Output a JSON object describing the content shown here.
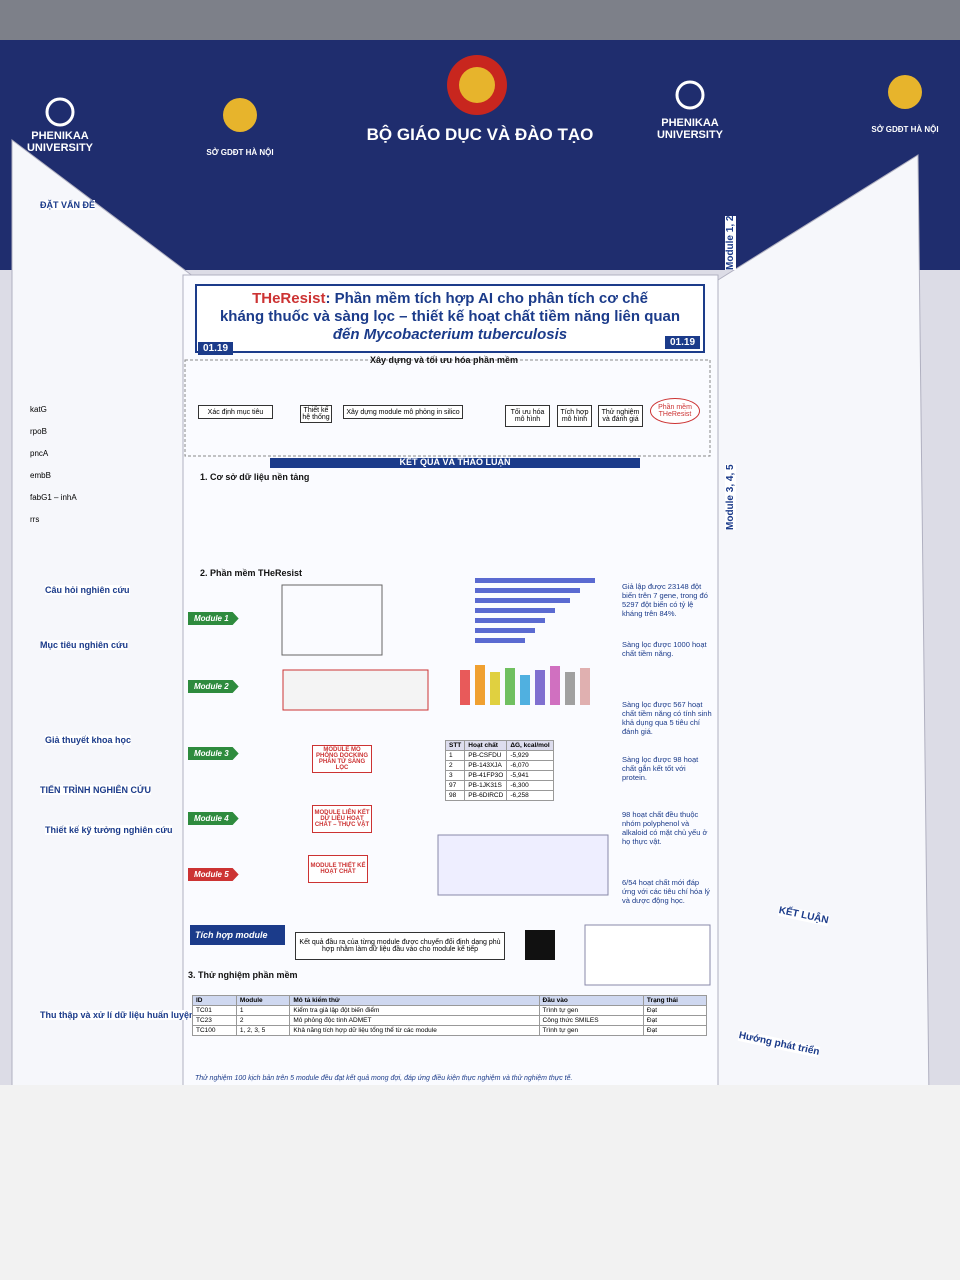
{
  "header": {
    "org_left": "PHENIKAA UNIVERSITY",
    "dept_left": "SỞ GDĐT HÀ NỘI",
    "ministry": "BỘ GIÁO DỤC VÀ ĐÀO TẠO",
    "org_right": "PHENIKAA UNIVERSITY",
    "dept_right": "SỞ GDĐT HÀ NỘI"
  },
  "poster": {
    "title_brand": "THeResist",
    "title_lines": [
      ": Phần mềm tích hợp AI cho phân tích cơ chế",
      "kháng thuốc và sàng lọc – thiết kế hoạt chất tiềm năng liên quan",
      "đến Mycobacterium tuberculosis"
    ],
    "badge": "01.19",
    "left_panel": {
      "sections": [
        "ĐẶT VẤN ĐỀ",
        "Câu hỏi nghiên cứu",
        "Mục tiêu nghiên cứu",
        "Giả thuyết khoa học",
        "TIẾN TRÌNH NGHIÊN CỨU",
        "Thiết kế kỹ tưởng nghiên cứu",
        "Thu thập và xử lí dữ liệu huấn luyện"
      ],
      "genes": [
        "katG",
        "rpoB",
        "pncA",
        "embB",
        "fabG1 – inhA",
        "rrs"
      ]
    },
    "center": {
      "build_heading": "Xây dựng và tối ưu hóa phần mềm",
      "flow": [
        "Xác định mục tiêu",
        "Thiết kế hệ thống",
        "Xây dựng module mô phỏng in silico",
        "Tối ưu hóa mô hình",
        "Tích hợp mô hình",
        "Thử nghiệm và đánh giá",
        "Phần mềm THeResist"
      ],
      "results_heading": "KẾT QUẢ VÀ THẢO LUẬN",
      "s1": "1. Cơ sở dữ liệu nền tảng",
      "s2": "2. Phần mềm THeResist",
      "s3": "3. Thử nghiệm phần mềm",
      "modules": [
        "Module 1",
        "Module 2",
        "Module 3",
        "Module 4",
        "Module 5"
      ],
      "integration": "Tích hợp module",
      "integration_text": "Kết quả đầu ra của từng module được chuyển đổi định dạng phù hợp nhằm làm dữ liệu đầu vào cho module kế tiếp",
      "module_boxes": [
        "MODULE MÔ PHỎNG DOCKING PHÂN TỬ SÀNG LỌC",
        "MODULE LIÊN KẾT DỮ LIỆU HOẠT CHẤT – THỰC VẬT",
        "MODULE THIẾT KẾ HOẠT CHẤT"
      ],
      "findings": [
        "Giả lập được 23148 đột biến trên 7 gene, trong đó 5297 đột biến có tỷ lệ kháng trên 84%.",
        "Sàng lọc được 1000 hoạt chất tiềm năng.",
        "Sàng lọc được 567 hoạt chất tiềm năng có tính sinh khả dụng qua 5 tiêu chí đánh giá.",
        "Sàng lọc được 98 hoạt chất gắn kết tốt với protein.",
        "98 hoạt chất đều thuộc nhóm polyphenol và alkaloid có mặt chủ yếu ở họ thực vật.",
        "6/54 hoạt chất mới đáp ứng với các tiêu chí hóa lý và dược động học."
      ],
      "docking": {
        "header": [
          "STT",
          "Hoạt chất",
          "ΔG, kcal/mol"
        ],
        "rows": [
          [
            "1",
            "PB-CSFDU",
            "-5,929"
          ],
          [
            "2",
            "PB-143XJA",
            "-6,070"
          ],
          [
            "3",
            "PB-41FP3O",
            "-5,941"
          ],
          [
            "97",
            "PB-1JK31S",
            "-6,300"
          ],
          [
            "98",
            "PB-6DIRCD",
            "-6,258"
          ]
        ]
      },
      "tests": {
        "header": [
          "ID",
          "Module",
          "Mô tả kiểm thử",
          "Đầu vào",
          "Trạng thái"
        ],
        "rows": [
          [
            "TC01",
            "1",
            "Kiểm tra giả lập đột biến điểm",
            "Trình tự gen",
            "Đạt"
          ],
          [
            "TC23",
            "2",
            "Mô phỏng độc tính ADMET",
            "Công thức SMILES",
            "Đạt"
          ],
          [
            "TC100",
            "1, 2, 3, 5",
            "Khả năng tích hợp dữ liệu tổng thể từ các module",
            "Trình tự gen",
            "Đạt"
          ]
        ],
        "note": "Thử nghiệm 100 kịch bản trên 5 module đều đạt kết quả mong đợi, đáp ứng điều kiện thực nghiệm và thử nghiệm thực tế."
      }
    },
    "right_panel": {
      "sections": [
        "Module 1, 2",
        "Module 3, 4, 5",
        "KẾT LUẬN",
        "Hướng phát triển"
      ]
    }
  }
}
